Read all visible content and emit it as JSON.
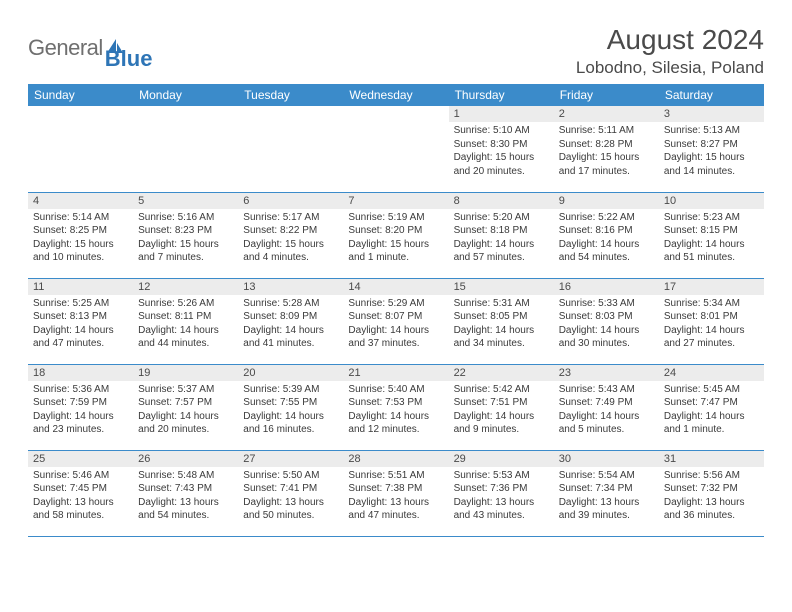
{
  "logo": {
    "text_gray": "General",
    "text_blue": "Blue"
  },
  "title": "August 2024",
  "location": "Lobodno, Silesia, Poland",
  "colors": {
    "header_bg": "#3b8bca",
    "header_fg": "#ffffff",
    "daynum_bg": "#ececec",
    "text": "#4a4a4a",
    "rule": "#3b8bca",
    "logo_gray": "#6f6f6f",
    "logo_blue": "#2e75b6"
  },
  "day_names": [
    "Sunday",
    "Monday",
    "Tuesday",
    "Wednesday",
    "Thursday",
    "Friday",
    "Saturday"
  ],
  "weeks": [
    [
      {
        "n": "",
        "sr": "",
        "ss": "",
        "dl": ""
      },
      {
        "n": "",
        "sr": "",
        "ss": "",
        "dl": ""
      },
      {
        "n": "",
        "sr": "",
        "ss": "",
        "dl": ""
      },
      {
        "n": "",
        "sr": "",
        "ss": "",
        "dl": ""
      },
      {
        "n": "1",
        "sr": "Sunrise: 5:10 AM",
        "ss": "Sunset: 8:30 PM",
        "dl": "Daylight: 15 hours and 20 minutes."
      },
      {
        "n": "2",
        "sr": "Sunrise: 5:11 AM",
        "ss": "Sunset: 8:28 PM",
        "dl": "Daylight: 15 hours and 17 minutes."
      },
      {
        "n": "3",
        "sr": "Sunrise: 5:13 AM",
        "ss": "Sunset: 8:27 PM",
        "dl": "Daylight: 15 hours and 14 minutes."
      }
    ],
    [
      {
        "n": "4",
        "sr": "Sunrise: 5:14 AM",
        "ss": "Sunset: 8:25 PM",
        "dl": "Daylight: 15 hours and 10 minutes."
      },
      {
        "n": "5",
        "sr": "Sunrise: 5:16 AM",
        "ss": "Sunset: 8:23 PM",
        "dl": "Daylight: 15 hours and 7 minutes."
      },
      {
        "n": "6",
        "sr": "Sunrise: 5:17 AM",
        "ss": "Sunset: 8:22 PM",
        "dl": "Daylight: 15 hours and 4 minutes."
      },
      {
        "n": "7",
        "sr": "Sunrise: 5:19 AM",
        "ss": "Sunset: 8:20 PM",
        "dl": "Daylight: 15 hours and 1 minute."
      },
      {
        "n": "8",
        "sr": "Sunrise: 5:20 AM",
        "ss": "Sunset: 8:18 PM",
        "dl": "Daylight: 14 hours and 57 minutes."
      },
      {
        "n": "9",
        "sr": "Sunrise: 5:22 AM",
        "ss": "Sunset: 8:16 PM",
        "dl": "Daylight: 14 hours and 54 minutes."
      },
      {
        "n": "10",
        "sr": "Sunrise: 5:23 AM",
        "ss": "Sunset: 8:15 PM",
        "dl": "Daylight: 14 hours and 51 minutes."
      }
    ],
    [
      {
        "n": "11",
        "sr": "Sunrise: 5:25 AM",
        "ss": "Sunset: 8:13 PM",
        "dl": "Daylight: 14 hours and 47 minutes."
      },
      {
        "n": "12",
        "sr": "Sunrise: 5:26 AM",
        "ss": "Sunset: 8:11 PM",
        "dl": "Daylight: 14 hours and 44 minutes."
      },
      {
        "n": "13",
        "sr": "Sunrise: 5:28 AM",
        "ss": "Sunset: 8:09 PM",
        "dl": "Daylight: 14 hours and 41 minutes."
      },
      {
        "n": "14",
        "sr": "Sunrise: 5:29 AM",
        "ss": "Sunset: 8:07 PM",
        "dl": "Daylight: 14 hours and 37 minutes."
      },
      {
        "n": "15",
        "sr": "Sunrise: 5:31 AM",
        "ss": "Sunset: 8:05 PM",
        "dl": "Daylight: 14 hours and 34 minutes."
      },
      {
        "n": "16",
        "sr": "Sunrise: 5:33 AM",
        "ss": "Sunset: 8:03 PM",
        "dl": "Daylight: 14 hours and 30 minutes."
      },
      {
        "n": "17",
        "sr": "Sunrise: 5:34 AM",
        "ss": "Sunset: 8:01 PM",
        "dl": "Daylight: 14 hours and 27 minutes."
      }
    ],
    [
      {
        "n": "18",
        "sr": "Sunrise: 5:36 AM",
        "ss": "Sunset: 7:59 PM",
        "dl": "Daylight: 14 hours and 23 minutes."
      },
      {
        "n": "19",
        "sr": "Sunrise: 5:37 AM",
        "ss": "Sunset: 7:57 PM",
        "dl": "Daylight: 14 hours and 20 minutes."
      },
      {
        "n": "20",
        "sr": "Sunrise: 5:39 AM",
        "ss": "Sunset: 7:55 PM",
        "dl": "Daylight: 14 hours and 16 minutes."
      },
      {
        "n": "21",
        "sr": "Sunrise: 5:40 AM",
        "ss": "Sunset: 7:53 PM",
        "dl": "Daylight: 14 hours and 12 minutes."
      },
      {
        "n": "22",
        "sr": "Sunrise: 5:42 AM",
        "ss": "Sunset: 7:51 PM",
        "dl": "Daylight: 14 hours and 9 minutes."
      },
      {
        "n": "23",
        "sr": "Sunrise: 5:43 AM",
        "ss": "Sunset: 7:49 PM",
        "dl": "Daylight: 14 hours and 5 minutes."
      },
      {
        "n": "24",
        "sr": "Sunrise: 5:45 AM",
        "ss": "Sunset: 7:47 PM",
        "dl": "Daylight: 14 hours and 1 minute."
      }
    ],
    [
      {
        "n": "25",
        "sr": "Sunrise: 5:46 AM",
        "ss": "Sunset: 7:45 PM",
        "dl": "Daylight: 13 hours and 58 minutes."
      },
      {
        "n": "26",
        "sr": "Sunrise: 5:48 AM",
        "ss": "Sunset: 7:43 PM",
        "dl": "Daylight: 13 hours and 54 minutes."
      },
      {
        "n": "27",
        "sr": "Sunrise: 5:50 AM",
        "ss": "Sunset: 7:41 PM",
        "dl": "Daylight: 13 hours and 50 minutes."
      },
      {
        "n": "28",
        "sr": "Sunrise: 5:51 AM",
        "ss": "Sunset: 7:38 PM",
        "dl": "Daylight: 13 hours and 47 minutes."
      },
      {
        "n": "29",
        "sr": "Sunrise: 5:53 AM",
        "ss": "Sunset: 7:36 PM",
        "dl": "Daylight: 13 hours and 43 minutes."
      },
      {
        "n": "30",
        "sr": "Sunrise: 5:54 AM",
        "ss": "Sunset: 7:34 PM",
        "dl": "Daylight: 13 hours and 39 minutes."
      },
      {
        "n": "31",
        "sr": "Sunrise: 5:56 AM",
        "ss": "Sunset: 7:32 PM",
        "dl": "Daylight: 13 hours and 36 minutes."
      }
    ]
  ]
}
